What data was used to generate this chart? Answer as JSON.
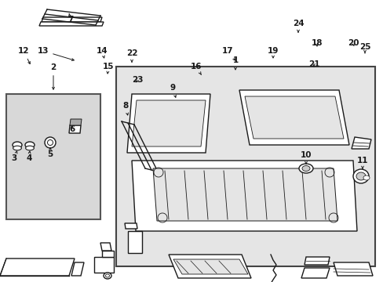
{
  "bg_color": "#ffffff",
  "box_bg": "#e8e8e8",
  "line_color": "#1a1a1a",
  "lw": 1.0
}
